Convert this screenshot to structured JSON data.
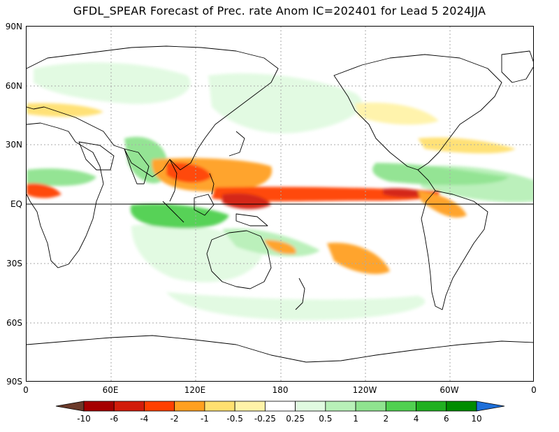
{
  "title": "GFDL_SPEAR Forecast of Prec. rate Anom IC=202401 for Lead 5 2024JJA",
  "lat_labels": [
    "90N",
    "60N",
    "30N",
    "EQ",
    "30S",
    "60S",
    "90S"
  ],
  "lon_labels": [
    "0",
    "60E",
    "120E",
    "180",
    "120W",
    "60W",
    "0"
  ],
  "colorbar": {
    "labels": [
      "-10",
      "-6",
      "-4",
      "-2",
      "-1",
      "-0.5",
      "-0.25",
      "0.25",
      "0.5",
      "1",
      "2",
      "4",
      "6",
      "10"
    ],
    "colors": [
      "#6b3a2a",
      "#a50000",
      "#d21c0a",
      "#ff4000",
      "#ffa020",
      "#ffe070",
      "#fff3a8",
      "#ffffff",
      "#e1fae1",
      "#b8f0b8",
      "#8fe38f",
      "#50d050",
      "#20b020",
      "#008c00",
      "#1e6fd9"
    ]
  },
  "colors": {
    "dry_strong": "#d21c0a",
    "dry_moderate": "#ff4000",
    "dry_weak": "#ffa020",
    "dry_slight": "#fff3a8",
    "wet_slight": "#e1fae1",
    "wet_moderate": "#8fe38f",
    "wet_strong": "#20b020",
    "coastline": "#000000",
    "grid": "#aaaaaa"
  }
}
